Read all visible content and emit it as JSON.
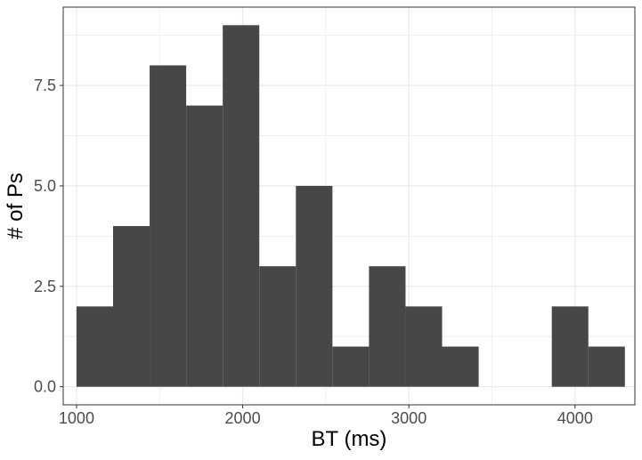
{
  "chart_data": {
    "type": "bar",
    "subtype": "histogram",
    "title": "",
    "xlabel": "BT (ms)",
    "ylabel": "# of Ps",
    "xlim": [
      920,
      4360
    ],
    "ylim": [
      -0.45,
      9.45
    ],
    "x_ticks": [
      1000,
      2000,
      3000,
      4000
    ],
    "x_tick_labels": [
      "1000",
      "2000",
      "3000",
      "4000"
    ],
    "y_ticks": [
      0,
      2.5,
      5,
      7.5
    ],
    "y_tick_labels": [
      "0.0",
      "2.5",
      "5.0",
      "7.5"
    ],
    "bins": [
      {
        "start": 1000,
        "end": 1220,
        "count": 2
      },
      {
        "start": 1220,
        "end": 1440,
        "count": 4
      },
      {
        "start": 1440,
        "end": 1660,
        "count": 8
      },
      {
        "start": 1660,
        "end": 1880,
        "count": 7
      },
      {
        "start": 1880,
        "end": 2100,
        "count": 9
      },
      {
        "start": 2100,
        "end": 2320,
        "count": 3
      },
      {
        "start": 2320,
        "end": 2540,
        "count": 5
      },
      {
        "start": 2540,
        "end": 2760,
        "count": 1
      },
      {
        "start": 2760,
        "end": 2980,
        "count": 3
      },
      {
        "start": 2980,
        "end": 3200,
        "count": 2
      },
      {
        "start": 3200,
        "end": 3420,
        "count": 1
      },
      {
        "start": 3860,
        "end": 4080,
        "count": 2
      },
      {
        "start": 4080,
        "end": 4300,
        "count": 1
      }
    ],
    "grid": true,
    "legend": "none",
    "bar_color": "#474747",
    "grid_color": "#ebebeb",
    "panel_border_color": "#333333"
  }
}
